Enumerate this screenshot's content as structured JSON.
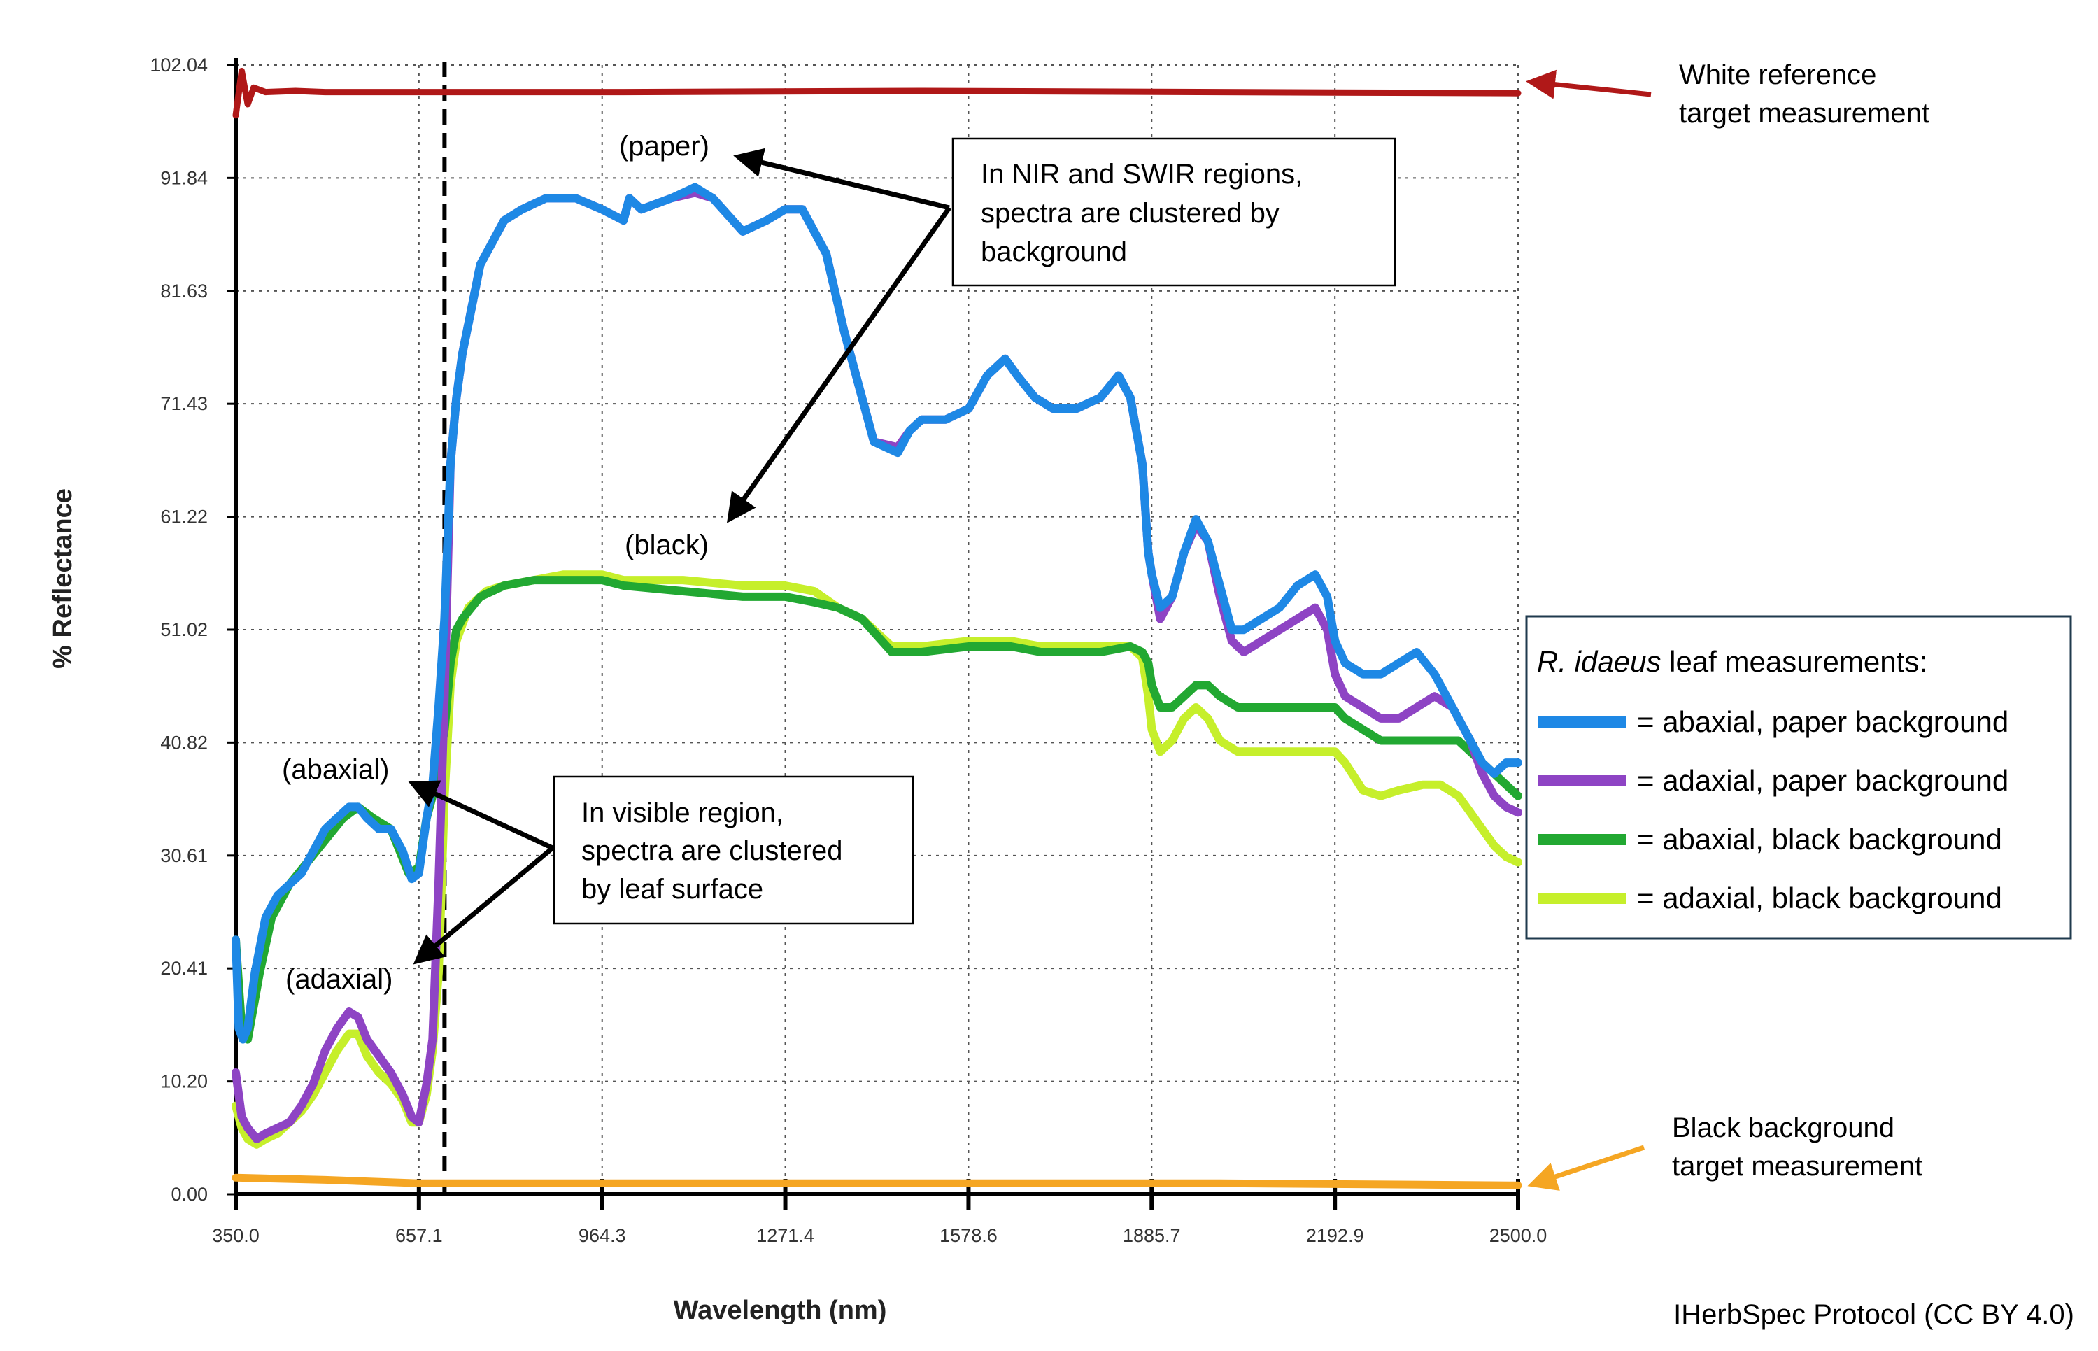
{
  "chart_data": {
    "type": "line",
    "title": "",
    "xlabel": "Wavelength (nm)",
    "ylabel": "% Reflectance",
    "xlim": [
      350.0,
      2500.0
    ],
    "ylim": [
      0.0,
      102.04
    ],
    "x_ticks": [
      "350.0",
      "657.1",
      "964.3",
      "1271.4",
      "1578.6",
      "1885.7",
      "2192.9",
      "2500.0"
    ],
    "y_ticks": [
      "0.00",
      "10.20",
      "20.41",
      "30.61",
      "40.82",
      "51.02",
      "61.22",
      "71.43",
      "81.63",
      "91.84",
      "102.04"
    ],
    "grid": true,
    "vertical_marker_x": 700,
    "series": [
      {
        "key": "white_ref",
        "color": "#b01818",
        "x": [
          350,
          360,
          370,
          380,
          400,
          450,
          500,
          1000,
          1500,
          2000,
          2500
        ],
        "y": [
          97.5,
          101.5,
          98.5,
          100.0,
          99.6,
          99.7,
          99.6,
          99.6,
          99.7,
          99.6,
          99.5
        ]
      },
      {
        "key": "black_ref",
        "color": "#f5a623",
        "x": [
          350,
          500,
          657,
          800,
          1000,
          1500,
          2000,
          2500
        ],
        "y": [
          1.5,
          1.3,
          1.0,
          1.0,
          1.0,
          1.0,
          1.0,
          0.8
        ]
      },
      {
        "key": "abaxial_paper",
        "color": "#1e88e5",
        "x": [
          350,
          355,
          362,
          370,
          382,
          400,
          420,
          440,
          460,
          480,
          500,
          520,
          540,
          555,
          570,
          590,
          610,
          630,
          645,
          657,
          670,
          680,
          690,
          700,
          710,
          720,
          730,
          745,
          760,
          780,
          800,
          830,
          870,
          920,
          964,
          1000,
          1010,
          1030,
          1080,
          1120,
          1150,
          1200,
          1240,
          1271,
          1300,
          1340,
          1370,
          1420,
          1460,
          1480,
          1500,
          1540,
          1579,
          1610,
          1640,
          1660,
          1690,
          1720,
          1760,
          1800,
          1830,
          1850,
          1870,
          1880,
          1886,
          1900,
          1920,
          1940,
          1960,
          1980,
          2000,
          2020,
          2040,
          2070,
          2100,
          2130,
          2160,
          2180,
          2193,
          2210,
          2240,
          2270,
          2300,
          2330,
          2360,
          2390,
          2420,
          2440,
          2460,
          2480,
          2500
        ],
        "y": [
          23,
          15,
          14,
          15,
          20,
          25,
          27,
          28,
          29,
          31,
          33,
          34,
          35,
          35,
          34,
          33,
          33,
          31,
          28.5,
          29,
          34,
          37,
          44,
          52,
          66,
          72,
          76,
          80,
          84,
          86,
          88,
          89,
          90,
          90,
          89,
          88,
          90,
          89,
          90,
          91,
          90,
          87,
          88,
          89,
          89,
          85,
          78,
          68,
          67,
          69,
          70,
          70,
          71,
          74,
          75.5,
          74,
          72,
          71,
          71,
          72,
          74,
          72,
          66,
          58,
          56,
          53,
          54,
          58,
          61,
          59,
          55,
          51,
          51,
          52,
          53,
          55,
          56,
          54,
          50,
          48,
          47,
          47,
          48,
          49,
          47,
          44,
          41,
          39,
          38,
          39,
          39
        ]
      },
      {
        "key": "adaxial_paper",
        "color": "#8e44c4",
        "x": [
          350,
          360,
          370,
          385,
          400,
          420,
          440,
          460,
          480,
          500,
          520,
          540,
          555,
          570,
          590,
          610,
          630,
          645,
          657,
          670,
          680,
          690,
          700,
          710,
          720,
          730,
          745,
          760,
          780,
          800,
          830,
          870,
          920,
          964,
          1000,
          1010,
          1030,
          1080,
          1120,
          1150,
          1200,
          1240,
          1271,
          1300,
          1340,
          1370,
          1420,
          1460,
          1480,
          1500,
          1540,
          1579,
          1610,
          1640,
          1660,
          1690,
          1720,
          1760,
          1800,
          1830,
          1850,
          1870,
          1880,
          1886,
          1900,
          1920,
          1940,
          1960,
          1980,
          2000,
          2020,
          2040,
          2070,
          2100,
          2130,
          2160,
          2180,
          2193,
          2210,
          2240,
          2270,
          2300,
          2330,
          2360,
          2390,
          2420,
          2440,
          2460,
          2480,
          2500
        ],
        "y": [
          11,
          7,
          6,
          5,
          5.5,
          6,
          6.5,
          8,
          10,
          13,
          15,
          16.5,
          16,
          14,
          12.5,
          11,
          9,
          7,
          6.5,
          10,
          14,
          28,
          45,
          66,
          72,
          76,
          80,
          84,
          86,
          88,
          89,
          90,
          90,
          89,
          88,
          90,
          89,
          90,
          90.5,
          90,
          87,
          88,
          89,
          89,
          85,
          78,
          68,
          67.5,
          69,
          70,
          70,
          71,
          74,
          75.5,
          74,
          72,
          71,
          71,
          72,
          74,
          72,
          66,
          58,
          56,
          52,
          54,
          58,
          60.5,
          59,
          54,
          50,
          49,
          50,
          51,
          52,
          53,
          51,
          47,
          45,
          44,
          43,
          43,
          44,
          45,
          44,
          41,
          38,
          36,
          35,
          34.5
        ]
      },
      {
        "key": "abaxial_black",
        "color": "#22a832",
        "x": [
          350,
          360,
          370,
          390,
          410,
          440,
          470,
          500,
          530,
          555,
          580,
          610,
          640,
          657,
          670,
          685,
          700,
          710,
          720,
          730,
          760,
          800,
          850,
          900,
          964,
          1000,
          1100,
          1200,
          1271,
          1320,
          1360,
          1400,
          1450,
          1500,
          1579,
          1650,
          1700,
          1750,
          1800,
          1850,
          1870,
          1880,
          1886,
          1900,
          1920,
          1940,
          1960,
          1980,
          2000,
          2030,
          2060,
          2100,
          2140,
          2170,
          2193,
          2210,
          2240,
          2270,
          2300,
          2340,
          2370,
          2400,
          2420,
          2440,
          2460,
          2480,
          2500
        ],
        "y": [
          23,
          15,
          14,
          20,
          25,
          28,
          30,
          32,
          34,
          35,
          34,
          33,
          29,
          29.5,
          34,
          37,
          42,
          48,
          51,
          52,
          54,
          55,
          55.5,
          55.5,
          55.5,
          55,
          54.5,
          54,
          54,
          53.5,
          53,
          52,
          49,
          49,
          49.5,
          49.5,
          49,
          49,
          49,
          49.5,
          49,
          48,
          46,
          44,
          44,
          45,
          46,
          46,
          45,
          44,
          44,
          44,
          44,
          44,
          44,
          43,
          42,
          41,
          41,
          41,
          41,
          41,
          40,
          39,
          38,
          37,
          36
        ]
      },
      {
        "key": "adaxial_black",
        "color": "#c6ef2b",
        "x": [
          350,
          360,
          370,
          385,
          400,
          420,
          440,
          460,
          480,
          500,
          520,
          540,
          555,
          570,
          590,
          610,
          630,
          645,
          657,
          670,
          680,
          690,
          700,
          710,
          720,
          740,
          770,
          800,
          850,
          900,
          964,
          1000,
          1100,
          1200,
          1271,
          1320,
          1360,
          1400,
          1450,
          1500,
          1579,
          1650,
          1700,
          1750,
          1800,
          1850,
          1870,
          1880,
          1886,
          1900,
          1920,
          1940,
          1960,
          1980,
          2000,
          2030,
          2060,
          2100,
          2140,
          2170,
          2193,
          2210,
          2240,
          2270,
          2300,
          2340,
          2370,
          2400,
          2420,
          2440,
          2460,
          2480,
          2500
        ],
        "y": [
          8,
          6,
          5,
          4.5,
          5,
          5.5,
          6.5,
          7.5,
          9,
          11,
          13,
          14.5,
          14.5,
          12.5,
          11,
          10,
          8.5,
          6.5,
          6.5,
          9,
          13,
          20,
          36,
          46,
          50,
          53,
          54.5,
          55,
          55.5,
          56,
          56,
          55.5,
          55.5,
          55,
          55,
          54.5,
          53,
          52,
          49.5,
          49.5,
          50,
          50,
          49.5,
          49.5,
          49.5,
          49.5,
          48.5,
          45,
          42,
          40,
          41,
          43,
          44,
          43,
          41,
          40,
          40,
          40,
          40,
          40,
          40,
          39,
          36.5,
          36,
          36.5,
          37,
          37,
          36,
          34.5,
          33,
          31.5,
          30.5,
          30
        ]
      }
    ],
    "legend": {
      "title_species": "R. idaeus",
      "title_rest": " leaf measurements:",
      "items": [
        {
          "label": "= abaxial, paper background",
          "color": "#1e88e5"
        },
        {
          "label": "= adaxial, paper background",
          "color": "#8e44c4"
        },
        {
          "label": "= abaxial, black background",
          "color": "#22a832"
        },
        {
          "label": "= adaxial, black background",
          "color": "#c6ef2b"
        }
      ]
    },
    "annotations": {
      "paper": "(paper)",
      "black": "(black)",
      "abaxial": "(abaxial)",
      "adaxial": "(adaxial)",
      "white_ref_lines": [
        "White reference",
        "target measurement"
      ],
      "black_ref_lines": [
        "Black background",
        "target measurement"
      ],
      "nir_box_lines": [
        "In NIR and SWIR regions,",
        "spectra are clustered by",
        "background"
      ],
      "vis_box_lines": [
        "In visible region,",
        "spectra are clustered",
        "by leaf surface"
      ],
      "credit": "IHerbSpec Protocol (CC BY 4.0)",
      "white_arrow_color": "#b01818",
      "black_arrow_color": "#f5a623"
    }
  }
}
